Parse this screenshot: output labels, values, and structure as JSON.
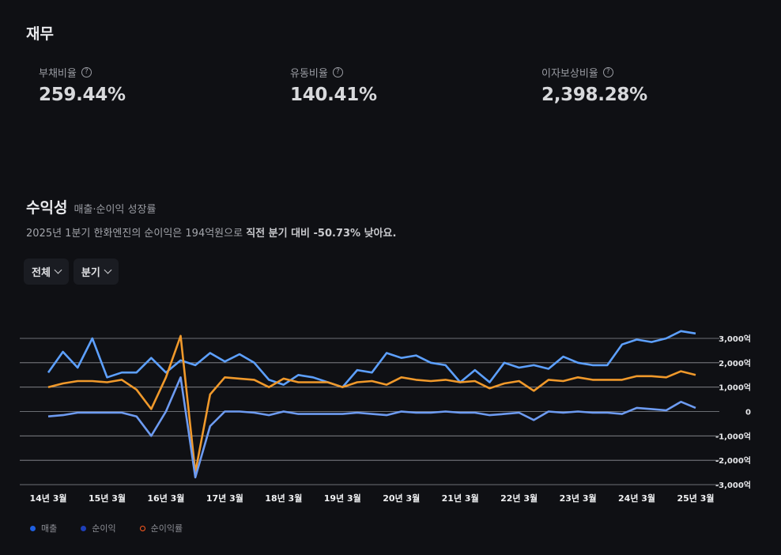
{
  "finance": {
    "title": "재무",
    "metrics": [
      {
        "label": "부채비율",
        "value": "259.44%"
      },
      {
        "label": "유동비율",
        "value": "140.41%"
      },
      {
        "label": "이자보상비율",
        "value": "2,398.28%"
      }
    ]
  },
  "profitability": {
    "title": "수익성",
    "subtitle": "매출·순이익 성장률",
    "summary_prefix": "2025년 1분기 한화엔진의 순이익은 194억원으로 ",
    "summary_bold": "직전 분기 대비 -50.73% 낮아요.",
    "filters": [
      "전체",
      "분기"
    ]
  },
  "legend": {
    "items": [
      {
        "label": "매출",
        "color": "#1f5fe0"
      },
      {
        "label": "순이익",
        "color": "#1e3fb8"
      },
      {
        "label": "순이익률",
        "color": "#ff5a1f"
      }
    ]
  },
  "chart_data": {
    "type": "line",
    "x_start": "14년 3월",
    "x_tick_labels": [
      "14년 3월",
      "15년 3월",
      "16년 3월",
      "17년 3월",
      "18년 3월",
      "19년 3월",
      "20년 3월",
      "21년 3월",
      "22년 3월",
      "23년 3월",
      "24년 3월",
      "25년 3월"
    ],
    "y_tick_labels": [
      "3,000억",
      "2,000억",
      "1,000억",
      "0",
      "-1,000억",
      "-2,000억",
      "-3,000억"
    ],
    "ylim": [
      -3000,
      3000
    ],
    "y_unit": "억",
    "series": [
      {
        "color": "#5da0ff",
        "values": [
          1600,
          2450,
          1800,
          3000,
          1400,
          1600,
          1600,
          2200,
          1600,
          2100,
          1900,
          2400,
          2050,
          2350,
          2000,
          1300,
          1100,
          1500,
          1400,
          1200,
          1000,
          1700,
          1600,
          2400,
          2200,
          2300,
          2000,
          1900,
          1200,
          1700,
          1200,
          2000,
          1800,
          1900,
          1750,
          2250,
          2000,
          1900,
          1900,
          2750,
          2950,
          2850,
          3000,
          3300,
          3200
        ]
      },
      {
        "color": "#f0992b",
        "values": [
          1000,
          1150,
          1250,
          1250,
          1200,
          1300,
          900,
          100,
          1400,
          3100,
          -2500,
          700,
          1400,
          1350,
          1300,
          1000,
          1350,
          1200,
          1200,
          1200,
          1000,
          1200,
          1250,
          1100,
          1400,
          1300,
          1250,
          1300,
          1200,
          1250,
          950,
          1150,
          1250,
          850,
          1300,
          1250,
          1400,
          1300,
          1300,
          1300,
          1450,
          1450,
          1400,
          1650,
          1500
        ]
      },
      {
        "color": "#6d9bf1",
        "values": [
          -200,
          -150,
          -50,
          -50,
          -50,
          -50,
          -200,
          -1000,
          0,
          1400,
          -2700,
          -600,
          0,
          0,
          -50,
          -150,
          0,
          -100,
          -100,
          -100,
          -100,
          -50,
          -100,
          -150,
          0,
          -50,
          -50,
          0,
          -50,
          -50,
          -150,
          -100,
          -50,
          -350,
          0,
          -50,
          0,
          -50,
          -50,
          -100,
          150,
          100,
          50,
          400,
          150
        ]
      }
    ]
  }
}
